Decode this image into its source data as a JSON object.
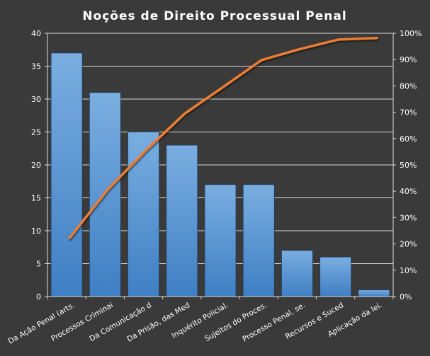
{
  "chart_data": {
    "type": "bar",
    "title": "Noções de Direito Processual Penal",
    "categories": [
      "Da Ação Penal (arts.",
      "Processos Criminai",
      "Da Comunicação d",
      "Da Prisão, das Med",
      "Inquérito Policial.",
      "Sujeitos do Proces.",
      "Processo Penal, se.",
      "Recursos e Suced",
      "Aplicação da lei."
    ],
    "series": [
      {
        "type": "bar",
        "values": [
          37,
          31,
          25,
          23,
          17,
          17,
          7,
          6,
          1
        ]
      },
      {
        "type": "line",
        "axis": "right",
        "values": [
          22.2,
          40.7,
          55.7,
          69.5,
          79.6,
          89.8,
          94.0,
          97.6,
          98.2
        ]
      }
    ],
    "ylim": [
      0,
      40
    ],
    "yticks": [
      "0",
      "5",
      "10",
      "15",
      "20",
      "25",
      "30",
      "35",
      "40"
    ],
    "y2lim": [
      0,
      100
    ],
    "y2ticks": [
      "0%",
      "10%",
      "20%",
      "30%",
      "40%",
      "50%",
      "60%",
      "70%",
      "80%",
      "90%",
      "100%"
    ],
    "grid": true,
    "legend": "none",
    "colors": {
      "background": "#3a3a3a",
      "plot_background": "#3a3a3a",
      "bar_fill": "#5b9bd5",
      "line": "#ed7d31",
      "grid": "#d9d9d9",
      "text": "#ffffff"
    }
  }
}
